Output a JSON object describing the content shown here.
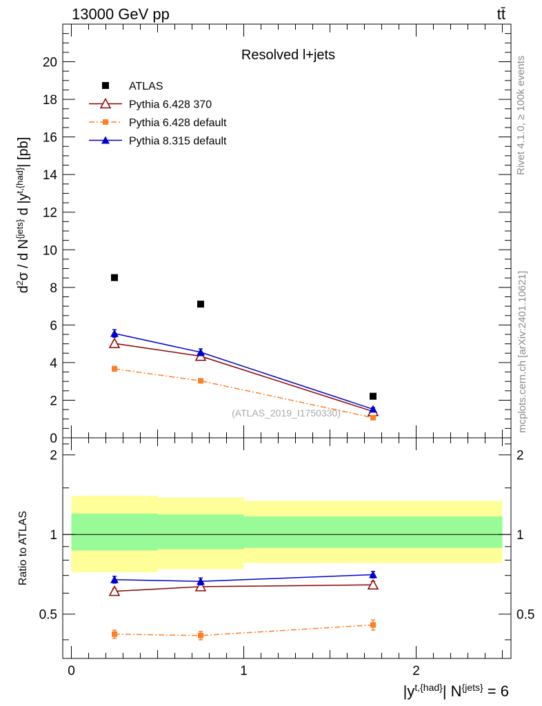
{
  "header": {
    "energy_label": "13000 GeV pp",
    "process_label": "tt̄"
  },
  "side_labels": {
    "rivet": "Rivet 4.1.0, ≥ 100k events",
    "mcplots": "mcplots.cern.ch [arXiv:2401.10621]"
  },
  "colors": {
    "atlas": "#000000",
    "pythia6_370": "#8b0000",
    "pythia6_default": "#ff7f27",
    "pythia8_default": "#0000cc",
    "band_inner": "#98fb98",
    "band_outer": "#ffff99",
    "watermark": "#aaaaaa"
  },
  "chart_data": [
    {
      "id": "main",
      "type": "scatter",
      "title": "Resolved l+jets",
      "ylabel": "d²σ / d N^{jets} d |y^{t,{had}}| [pb]",
      "xlabel": "",
      "xlim": [
        -0.05,
        2.55
      ],
      "ylim": [
        0,
        22
      ],
      "yticks": [
        0,
        2,
        4,
        6,
        8,
        10,
        12,
        14,
        16,
        18,
        20
      ],
      "ytick_labels": [
        "0",
        "2",
        "4",
        "6",
        "8",
        "10",
        "12",
        "14",
        "16",
        "18",
        "20"
      ],
      "watermark": "(ATLAS_2019_I1750330)",
      "legend_position": "top-left",
      "series": [
        {
          "name": "ATLAS",
          "key": "atlas",
          "marker": "square",
          "line": "none",
          "x": [
            0.25,
            0.75,
            1.75
          ],
          "y": [
            8.52,
            7.11,
            2.21
          ],
          "err": [
            0,
            0,
            0
          ]
        },
        {
          "name": "Pythia 6.428 370",
          "key": "pythia6_370",
          "marker": "triangle-open",
          "line": "solid",
          "x": [
            0.25,
            0.75,
            1.75
          ],
          "y": [
            5.02,
            4.34,
            1.4
          ],
          "err": [
            0.12,
            0.12,
            0.07
          ]
        },
        {
          "name": "Pythia 6.428 default",
          "key": "pythia6_default",
          "marker": "square-small",
          "line": "dashdot",
          "x": [
            0.25,
            0.75,
            1.75
          ],
          "y": [
            3.67,
            3.03,
            1.07
          ],
          "err": [
            0.13,
            0.11,
            0.06
          ]
        },
        {
          "name": "Pythia 8.315 default",
          "key": "pythia8_default",
          "marker": "triangle",
          "line": "solid",
          "x": [
            0.25,
            0.75,
            1.75
          ],
          "y": [
            5.55,
            4.55,
            1.52
          ],
          "err": [
            0.2,
            0.18,
            0.08
          ]
        }
      ]
    },
    {
      "id": "ratio",
      "type": "scatter",
      "ylabel": "Ratio to ATLAS",
      "xlabel": "|y^{t,{had}}| N^{jets} = 6",
      "xlim": [
        -0.05,
        2.55
      ],
      "ylim": [
        0.34,
        2.32
      ],
      "xticks": [
        0,
        1,
        2
      ],
      "xtick_labels": [
        "0",
        "1",
        "2"
      ],
      "yticks": [
        0.5,
        1,
        2
      ],
      "ytick_labels": [
        "0.5",
        "1",
        "2"
      ],
      "reference_line": 1,
      "bands": [
        {
          "xlo": 0,
          "xhi": 0.5,
          "outer": [
            0.72,
            1.4
          ],
          "inner": [
            0.87,
            1.2
          ]
        },
        {
          "xlo": 0.5,
          "xhi": 1.0,
          "outer": [
            0.74,
            1.38
          ],
          "inner": [
            0.88,
            1.19
          ]
        },
        {
          "xlo": 1.0,
          "xhi": 2.5,
          "outer": [
            0.78,
            1.34
          ],
          "inner": [
            0.89,
            1.17
          ]
        }
      ],
      "series": [
        {
          "name": "Pythia 6.428 370",
          "key": "pythia6_370",
          "marker": "triangle-open",
          "line": "solid",
          "x": [
            0.25,
            0.75,
            1.75
          ],
          "y": [
            0.61,
            0.635,
            0.645
          ],
          "err": [
            0.015,
            0.015,
            0.02
          ]
        },
        {
          "name": "Pythia 6.428 default",
          "key": "pythia6_default",
          "marker": "square-small",
          "line": "dashdot",
          "x": [
            0.25,
            0.75,
            1.75
          ],
          "y": [
            0.42,
            0.415,
            0.455
          ],
          "err": [
            0.015,
            0.015,
            0.02
          ]
        },
        {
          "name": "Pythia 8.315 default",
          "key": "pythia8_default",
          "marker": "triangle",
          "line": "solid",
          "x": [
            0.25,
            0.75,
            1.75
          ],
          "y": [
            0.675,
            0.665,
            0.705
          ],
          "err": [
            0.02,
            0.02,
            0.02
          ]
        }
      ]
    }
  ]
}
